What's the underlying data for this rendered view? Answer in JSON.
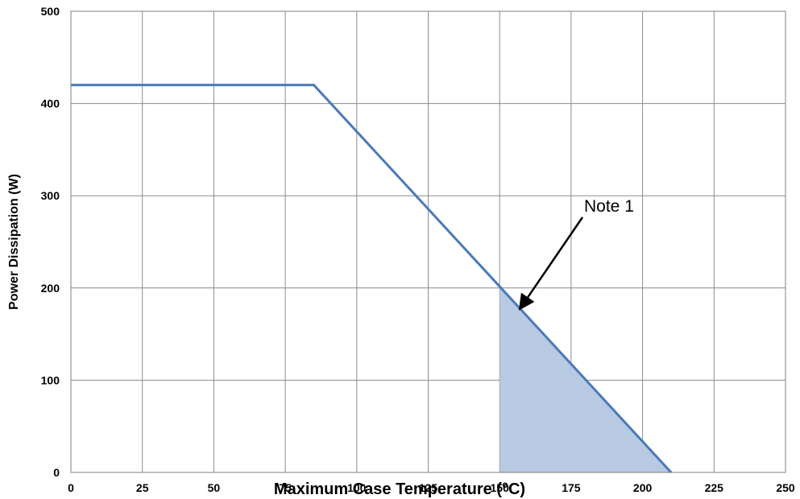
{
  "chart_data": {
    "type": "line",
    "title": "",
    "xlabel": "Maximum Case Temperature (°C)",
    "ylabel": "Power Dissipation (W)",
    "xlim": [
      0,
      250
    ],
    "ylim": [
      0,
      500
    ],
    "x_ticks": [
      0,
      25,
      50,
      75,
      100,
      125,
      150,
      175,
      200,
      225,
      250
    ],
    "y_ticks": [
      0,
      100,
      200,
      300,
      400,
      500
    ],
    "grid": true,
    "series": [
      {
        "color": "#4a7ab8",
        "points": [
          [
            0,
            420
          ],
          [
            85,
            420
          ],
          [
            210,
            0
          ]
        ]
      }
    ],
    "shaded_region": {
      "color": "#b8c9e2",
      "points": [
        [
          150,
          200
        ],
        [
          210,
          0
        ],
        [
          150,
          0
        ]
      ]
    },
    "annotations": [
      {
        "text": "Note 1",
        "arrow_to": [
          157,
          177
        ]
      }
    ]
  }
}
